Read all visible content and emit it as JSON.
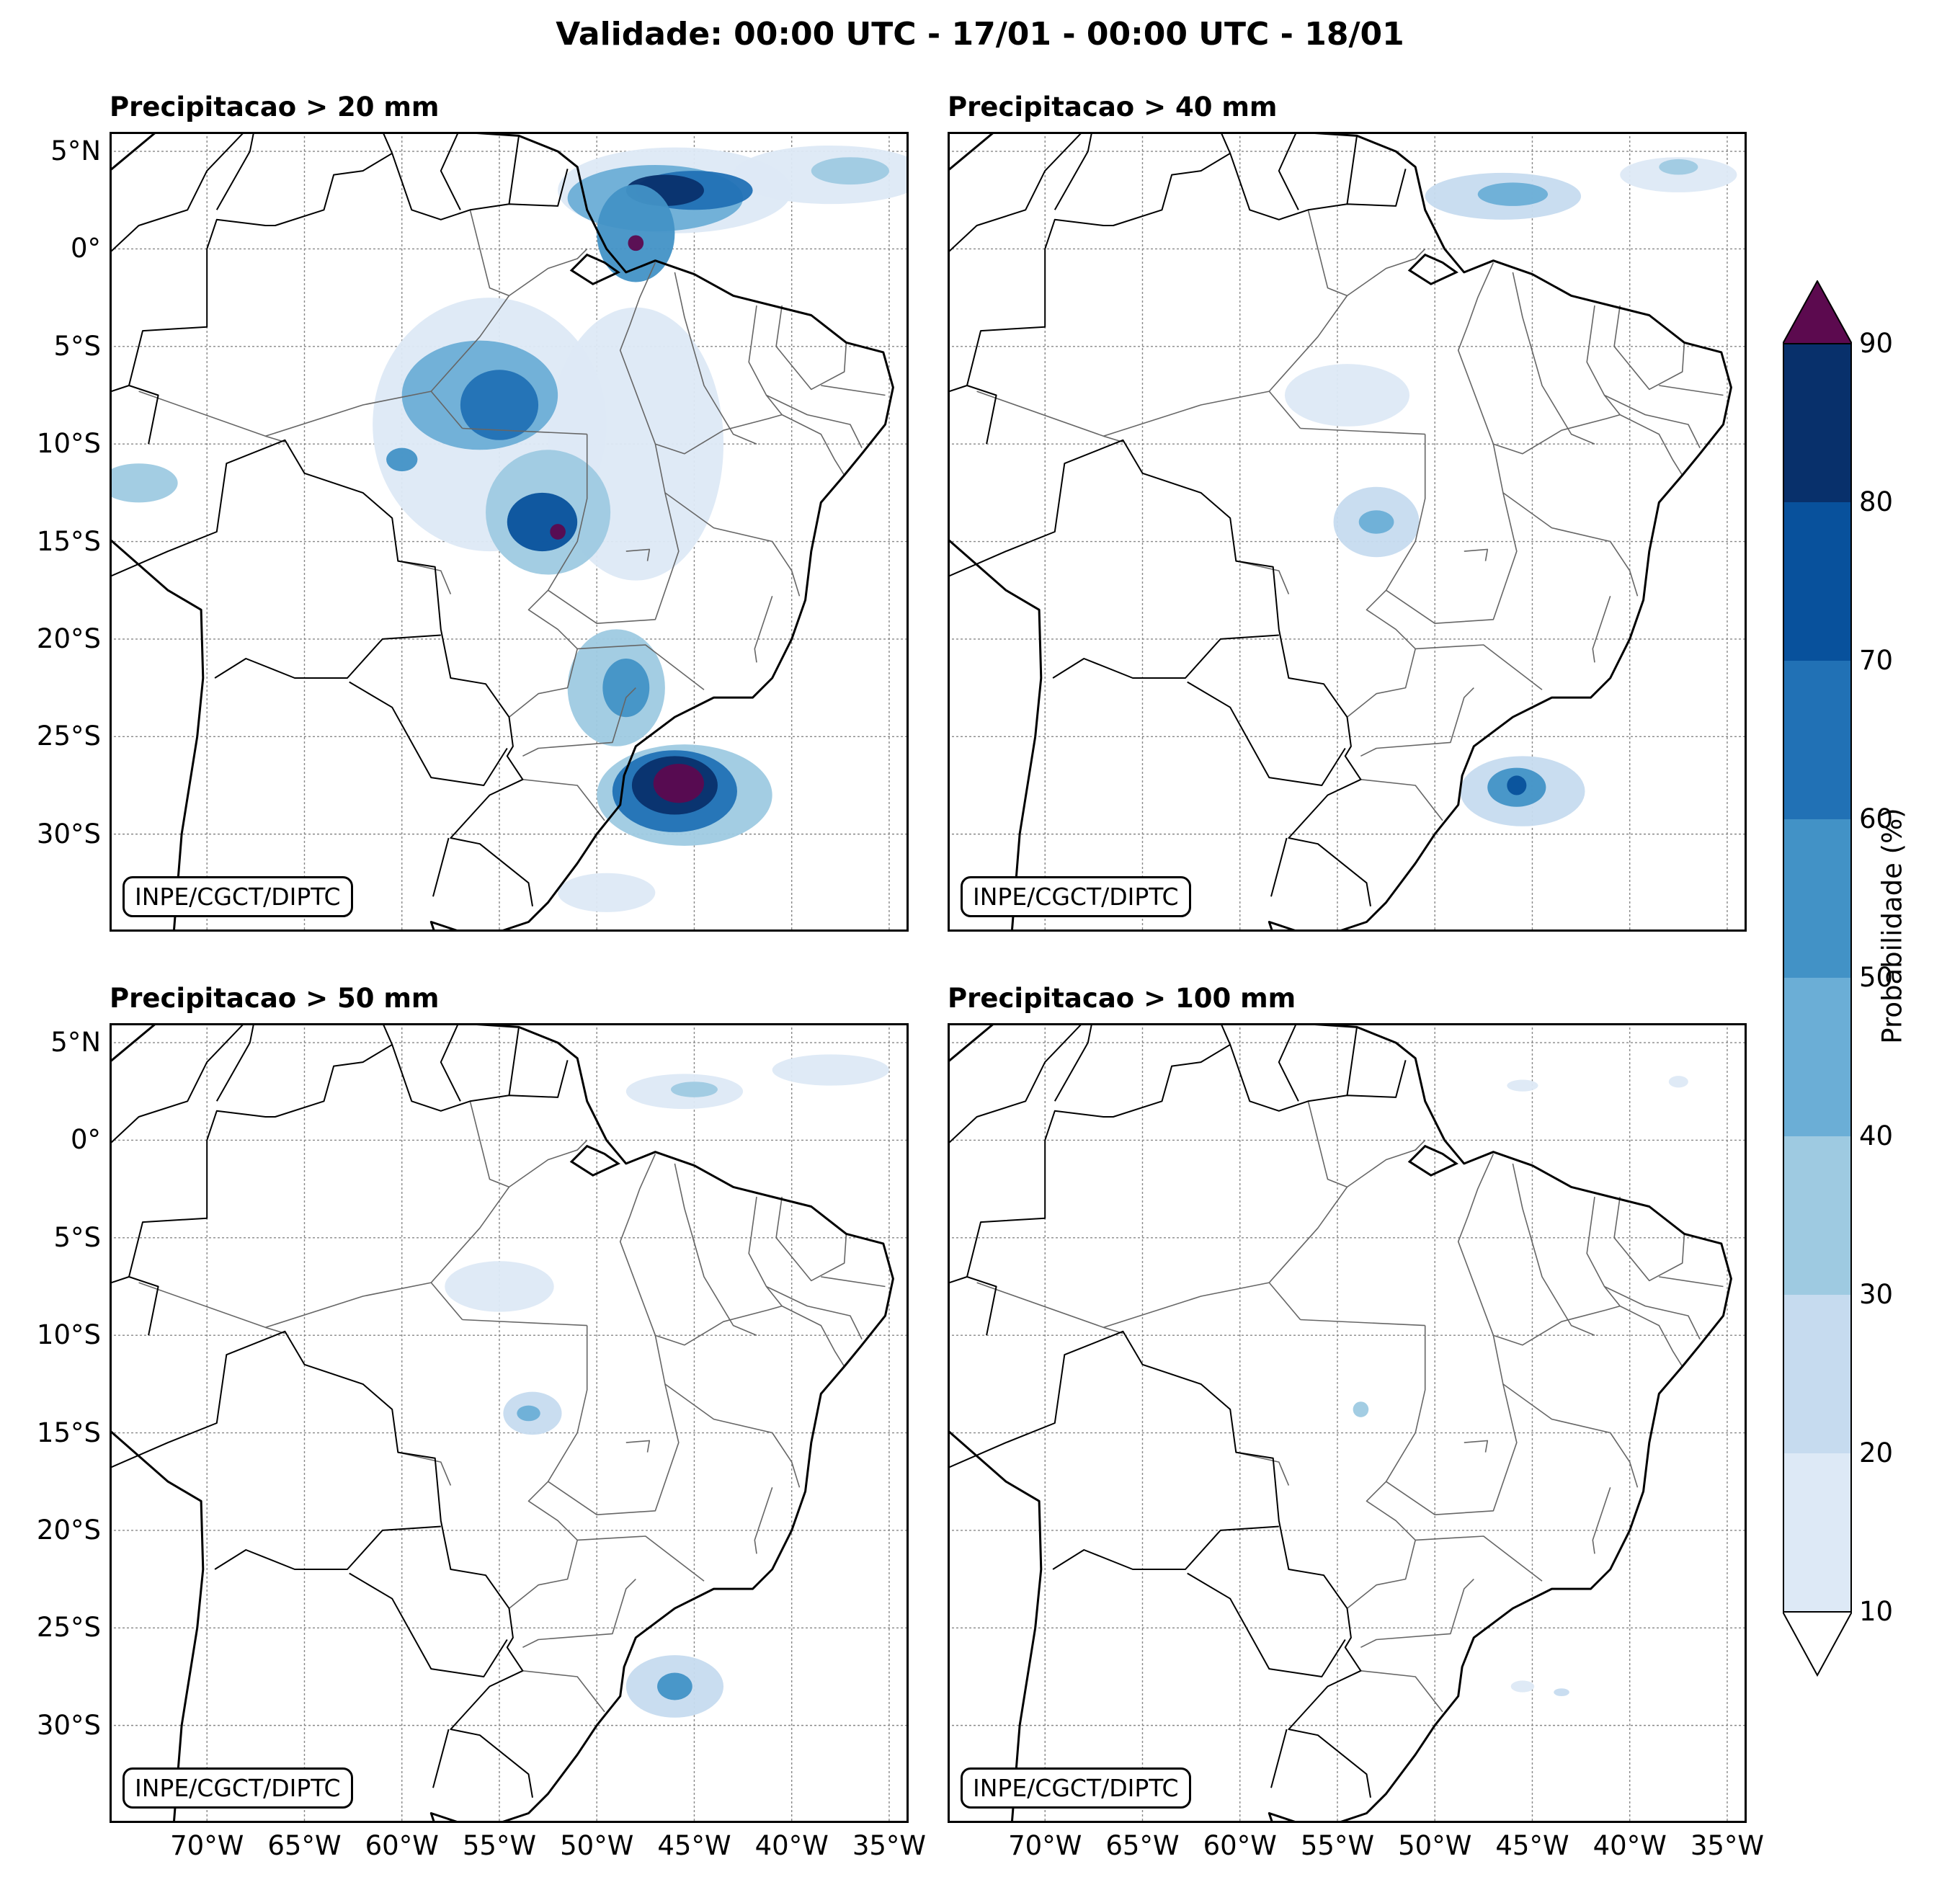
{
  "title": "Validade: 00:00 UTC - 17/01 - 00:00 UTC - 18/01",
  "panels": [
    {
      "title": "Precipitacao > 20 mm",
      "credit": "INPE/CGCT/DIPTC"
    },
    {
      "title": "Precipitacao > 40 mm",
      "credit": "INPE/CGCT/DIPTC"
    },
    {
      "title": "Precipitacao > 50 mm",
      "credit": "INPE/CGCT/DIPTC"
    },
    {
      "title": "Precipitacao > 100 mm",
      "credit": "INPE/CGCT/DIPTC"
    }
  ],
  "lat_labels": [
    "5°N",
    "0°",
    "5°S",
    "10°S",
    "15°S",
    "20°S",
    "25°S",
    "30°S"
  ],
  "lon_labels": [
    "70°W",
    "65°W",
    "60°W",
    "55°W",
    "50°W",
    "45°W",
    "40°W",
    "35°W"
  ],
  "colorbar": {
    "title": "Probabilidade (%)",
    "levels": [
      "10",
      "20",
      "30",
      "40",
      "50",
      "60",
      "70",
      "80",
      "90"
    ],
    "colors": [
      "#dde9f6",
      "#c6dbef",
      "#9ecae1",
      "#6baed6",
      "#4292c6",
      "#2171b5",
      "#08519c",
      "#08306b"
    ],
    "over_color": "#5c0a4f",
    "under_color": "#ffffff"
  },
  "map_extent": {
    "lon_min": -75,
    "lon_max": -34,
    "lat_min": -35,
    "lat_max": 6
  },
  "precip_blobs": [
    [
      {
        "lon": -46.0,
        "lat": 3.0,
        "rx": 6.0,
        "ry": 2.2,
        "level": 0
      },
      {
        "lon": -38.0,
        "lat": 3.8,
        "rx": 5.0,
        "ry": 1.5,
        "level": 0
      },
      {
        "lon": -47.0,
        "lat": 2.6,
        "rx": 4.5,
        "ry": 1.7,
        "level": 3
      },
      {
        "lon": -45.0,
        "lat": 3.0,
        "rx": 3.0,
        "ry": 1.0,
        "level": 5
      },
      {
        "lon": -46.5,
        "lat": 3.0,
        "rx": 2.0,
        "ry": 0.8,
        "level": 7
      },
      {
        "lon": -48.0,
        "lat": 0.8,
        "rx": 2.0,
        "ry": 2.5,
        "level": 4
      },
      {
        "lon": -48.0,
        "lat": 0.3,
        "rx": 0.4,
        "ry": 0.4,
        "level": 8
      },
      {
        "lon": -37.0,
        "lat": 4.0,
        "rx": 2.0,
        "ry": 0.7,
        "level": 2
      },
      {
        "lon": -55.5,
        "lat": -9.0,
        "rx": 6.0,
        "ry": 6.5,
        "level": 0
      },
      {
        "lon": -48.0,
        "lat": -10.0,
        "rx": 4.5,
        "ry": 7.0,
        "level": 0
      },
      {
        "lon": -56.0,
        "lat": -7.5,
        "rx": 4.0,
        "ry": 2.8,
        "level": 3
      },
      {
        "lon": -55.0,
        "lat": -8.0,
        "rx": 2.0,
        "ry": 1.8,
        "level": 5
      },
      {
        "lon": -52.5,
        "lat": -13.5,
        "rx": 3.2,
        "ry": 3.2,
        "level": 2
      },
      {
        "lon": -52.8,
        "lat": -14.0,
        "rx": 1.8,
        "ry": 1.5,
        "level": 6
      },
      {
        "lon": -52.0,
        "lat": -14.5,
        "rx": 0.4,
        "ry": 0.4,
        "level": 8
      },
      {
        "lon": -73.5,
        "lat": -12.0,
        "rx": 2.0,
        "ry": 1.0,
        "level": 2
      },
      {
        "lon": -60.0,
        "lat": -10.8,
        "rx": 0.8,
        "ry": 0.6,
        "level": 4
      },
      {
        "lon": -49.0,
        "lat": -22.5,
        "rx": 2.5,
        "ry": 3.0,
        "level": 2
      },
      {
        "lon": -48.5,
        "lat": -22.5,
        "rx": 1.2,
        "ry": 1.5,
        "level": 4
      },
      {
        "lon": -45.5,
        "lat": -28.0,
        "rx": 4.5,
        "ry": 2.6,
        "level": 2
      },
      {
        "lon": -46.0,
        "lat": -27.8,
        "rx": 3.2,
        "ry": 2.1,
        "level": 5
      },
      {
        "lon": -46.0,
        "lat": -27.5,
        "rx": 2.2,
        "ry": 1.5,
        "level": 7
      },
      {
        "lon": -45.8,
        "lat": -27.4,
        "rx": 1.3,
        "ry": 1.0,
        "level": 8
      },
      {
        "lon": -49.5,
        "lat": -33.0,
        "rx": 2.5,
        "ry": 1.0,
        "level": 0
      }
    ],
    [
      {
        "lon": -46.5,
        "lat": 2.7,
        "rx": 4.0,
        "ry": 1.2,
        "level": 1
      },
      {
        "lon": -46.0,
        "lat": 2.8,
        "rx": 1.8,
        "ry": 0.6,
        "level": 3
      },
      {
        "lon": -37.5,
        "lat": 3.8,
        "rx": 3.0,
        "ry": 0.9,
        "level": 0
      },
      {
        "lon": -37.5,
        "lat": 4.2,
        "rx": 1.0,
        "ry": 0.4,
        "level": 2
      },
      {
        "lon": -54.5,
        "lat": -7.5,
        "rx": 3.2,
        "ry": 1.6,
        "level": 0
      },
      {
        "lon": -53.0,
        "lat": -14.0,
        "rx": 2.2,
        "ry": 1.8,
        "level": 1
      },
      {
        "lon": -53.0,
        "lat": -14.0,
        "rx": 0.9,
        "ry": 0.6,
        "level": 3
      },
      {
        "lon": -45.5,
        "lat": -27.8,
        "rx": 3.2,
        "ry": 1.8,
        "level": 1
      },
      {
        "lon": -45.8,
        "lat": -27.6,
        "rx": 1.5,
        "ry": 1.0,
        "level": 4
      },
      {
        "lon": -45.8,
        "lat": -27.5,
        "rx": 0.5,
        "ry": 0.5,
        "level": 6
      }
    ],
    [
      {
        "lon": -45.5,
        "lat": 2.5,
        "rx": 3.0,
        "ry": 0.9,
        "level": 0
      },
      {
        "lon": -45.0,
        "lat": 2.6,
        "rx": 1.2,
        "ry": 0.4,
        "level": 2
      },
      {
        "lon": -38.0,
        "lat": 3.6,
        "rx": 3.0,
        "ry": 0.8,
        "level": 0
      },
      {
        "lon": -55.0,
        "lat": -7.5,
        "rx": 2.8,
        "ry": 1.3,
        "level": 0
      },
      {
        "lon": -53.3,
        "lat": -14.0,
        "rx": 1.5,
        "ry": 1.1,
        "level": 1
      },
      {
        "lon": -53.5,
        "lat": -14.0,
        "rx": 0.6,
        "ry": 0.4,
        "level": 3
      },
      {
        "lon": -46.0,
        "lat": -28.0,
        "rx": 2.5,
        "ry": 1.6,
        "level": 1
      },
      {
        "lon": -46.0,
        "lat": -28.0,
        "rx": 0.9,
        "ry": 0.7,
        "level": 4
      }
    ],
    [
      {
        "lon": -45.5,
        "lat": 2.8,
        "rx": 0.8,
        "ry": 0.3,
        "level": 0
      },
      {
        "lon": -37.5,
        "lat": 3.0,
        "rx": 0.5,
        "ry": 0.3,
        "level": 0
      },
      {
        "lon": -53.8,
        "lat": -13.8,
        "rx": 0.4,
        "ry": 0.4,
        "level": 2
      },
      {
        "lon": -45.5,
        "lat": -28.0,
        "rx": 0.6,
        "ry": 0.3,
        "level": 0
      },
      {
        "lon": -43.5,
        "lat": -28.3,
        "rx": 0.4,
        "ry": 0.2,
        "level": 1
      }
    ]
  ]
}
